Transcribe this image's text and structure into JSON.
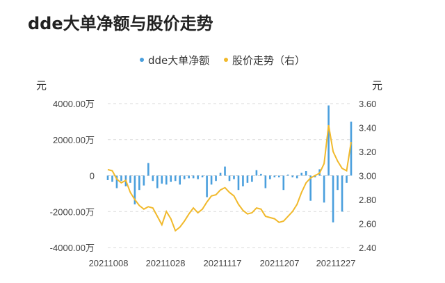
{
  "title": "dde大单净额与股价走势",
  "chart_data": {
    "type": "bar+line",
    "legend_position": "top-center",
    "grid": true,
    "left_axis": {
      "unit": "元",
      "ticks": [
        "4000.00万",
        "2000.00万",
        "0",
        "-2000.00万",
        "-4000.00万"
      ],
      "range": [
        -4000,
        4000
      ]
    },
    "right_axis": {
      "unit": "元",
      "ticks": [
        "3.60",
        "3.40",
        "3.20",
        "3.00",
        "2.80",
        "2.60",
        "2.40"
      ],
      "range": [
        2.4,
        3.6
      ]
    },
    "x_ticks": [
      "20211008",
      "20211028",
      "20211117",
      "20211207",
      "20211227"
    ],
    "series": [
      {
        "name": "dde大单净额",
        "type": "bar",
        "axis": "left",
        "color": "#4a9fdd",
        "values": [
          -250,
          -350,
          -700,
          -300,
          -600,
          -400,
          -1600,
          -800,
          -550,
          700,
          -300,
          -700,
          -450,
          -500,
          -350,
          -300,
          -500,
          -200,
          -150,
          -150,
          -200,
          -100,
          -1200,
          -500,
          -300,
          150,
          500,
          -300,
          -200,
          -800,
          -600,
          -400,
          -350,
          300,
          100,
          -700,
          -200,
          -100,
          -100,
          -800,
          50,
          -100,
          -150,
          150,
          250,
          -1400,
          -100,
          350,
          -1500,
          3900,
          -2600,
          -800,
          -2000,
          -400,
          3000
        ]
      },
      {
        "name": "股价走势（右）",
        "type": "line",
        "axis": "right",
        "color": "#f1b92b",
        "values": [
          3.05,
          3.04,
          2.97,
          2.94,
          2.96,
          2.86,
          2.8,
          2.75,
          2.72,
          2.74,
          2.73,
          2.66,
          2.59,
          2.7,
          2.64,
          2.54,
          2.57,
          2.62,
          2.68,
          2.73,
          2.69,
          2.72,
          2.78,
          2.83,
          2.84,
          2.88,
          2.9,
          2.86,
          2.83,
          2.76,
          2.71,
          2.68,
          2.69,
          2.73,
          2.72,
          2.66,
          2.65,
          2.64,
          2.61,
          2.62,
          2.66,
          2.7,
          2.76,
          2.86,
          2.94,
          2.98,
          3.0,
          3.02,
          3.1,
          3.42,
          3.2,
          3.12,
          3.06,
          3.04,
          3.28
        ]
      }
    ]
  }
}
